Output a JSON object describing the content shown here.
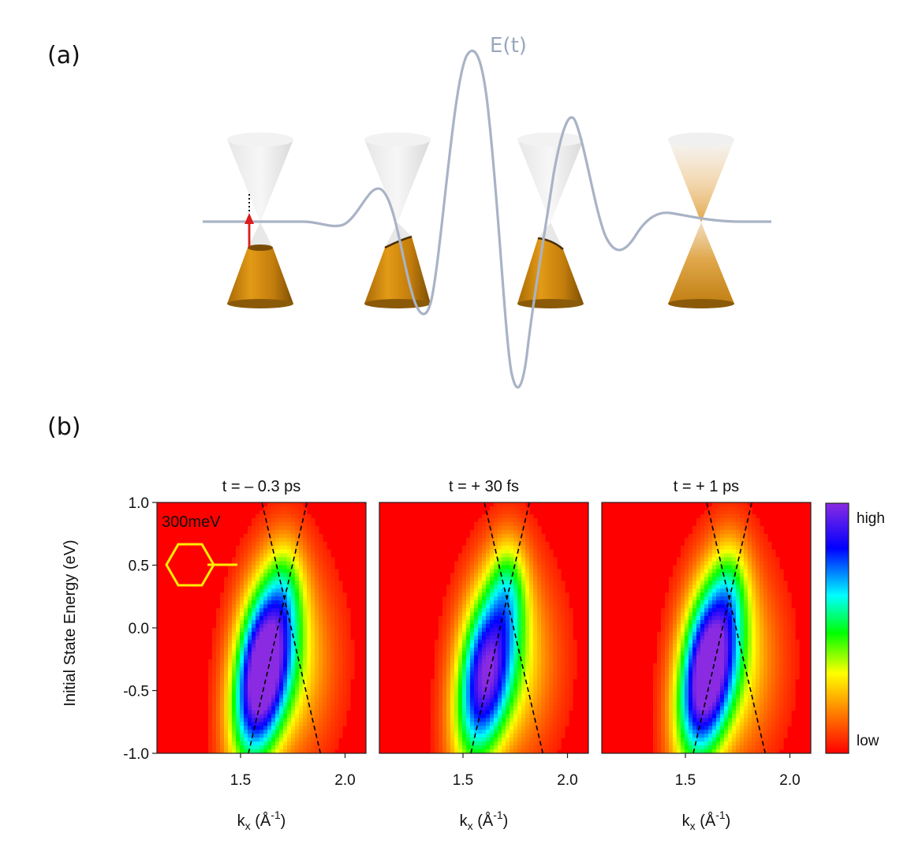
{
  "panel_a": {
    "label": "(a)",
    "field_label": "E(t)",
    "field_color": "#a9b3c6",
    "cone_color": "#d08a10",
    "cone_gray": "#d8d8d8",
    "arrow_color": "#dd1c1c"
  },
  "panel_b": {
    "label": "(b)",
    "colorbar": {
      "high": "high",
      "low": "low"
    },
    "chart_data": [
      {
        "type": "heatmap",
        "title": "t = – 0.3 ps",
        "annotation": "300meV",
        "xlabel_base": "k",
        "xlabel_sub": "x",
        "xlabel_rest": " (Å",
        "xlabel_sup": "-1",
        "xlabel_end": ")",
        "ylabel": "Initial State Energy (eV)",
        "xlim": [
          1.1,
          2.1
        ],
        "ylim": [
          -1.0,
          1.0
        ],
        "xticks": [
          1.5,
          2.0
        ],
        "xtick_labels": [
          "1.5",
          "2.0"
        ],
        "yticks": [
          1.0,
          0.5,
          0.0,
          -0.5,
          -1.0
        ],
        "ytick_labels": [
          "1.0",
          "0.5",
          "0.0",
          "-0.5",
          "-1.0"
        ],
        "blob": {
          "kx_center": 1.6,
          "energy_center": -0.38,
          "intensity": 1.0
        },
        "dirac_point": {
          "kx": 1.71,
          "energy": 0.23
        }
      },
      {
        "type": "heatmap",
        "title": "t = + 30 fs",
        "xlabel_base": "k",
        "xlabel_sub": "x",
        "xlabel_rest": " (Å",
        "xlabel_sup": "-1",
        "xlabel_end": ")",
        "xlim": [
          1.1,
          2.1
        ],
        "ylim": [
          -1.0,
          1.0
        ],
        "xticks": [
          1.5,
          2.0
        ],
        "xtick_labels": [
          "1.5",
          "2.0"
        ],
        "blob": {
          "kx_center": 1.6,
          "energy_center": -0.42,
          "intensity": 0.78
        },
        "dirac_point": {
          "kx": 1.71,
          "energy": 0.23
        }
      },
      {
        "type": "heatmap",
        "title": "t = + 1 ps",
        "xlabel_base": "k",
        "xlabel_sub": "x",
        "xlabel_rest": " (Å",
        "xlabel_sup": "-1",
        "xlabel_end": ")",
        "xlim": [
          1.1,
          2.1
        ],
        "ylim": [
          -1.0,
          1.0
        ],
        "xticks": [
          1.5,
          2.0
        ],
        "xtick_labels": [
          "1.5",
          "2.0"
        ],
        "blob": {
          "kx_center": 1.6,
          "energy_center": -0.38,
          "intensity": 0.97
        },
        "dirac_point": {
          "kx": 1.71,
          "energy": 0.23
        }
      }
    ]
  }
}
